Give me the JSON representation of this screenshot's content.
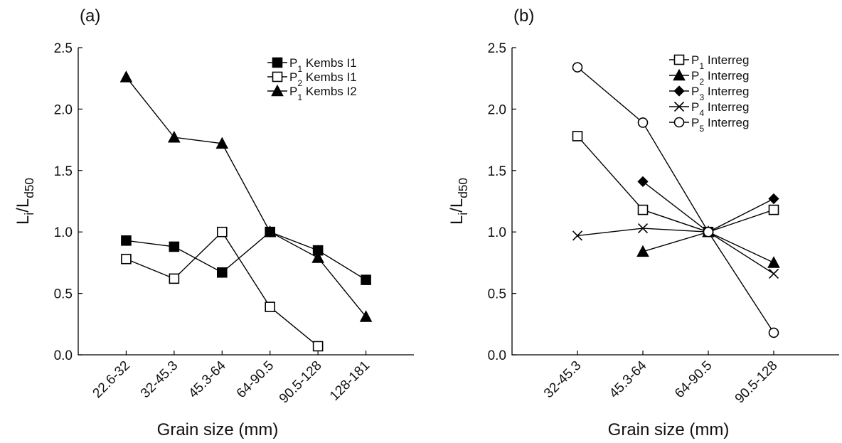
{
  "chart_data": [
    {
      "type": "line",
      "panel_label": "(a)",
      "xlabel": "Grain size (mm)",
      "ylabel": [
        "L",
        "i",
        "/L",
        "d50"
      ],
      "categories": [
        "22.6-32",
        "32-45.3",
        "45.3-64",
        "64-90.5",
        "90.5-128",
        "128-181"
      ],
      "ylim": [
        0,
        2.5
      ],
      "yticks": [
        {
          "value": 0,
          "label": "0.0"
        },
        {
          "value": 0.5,
          "label": "0.5"
        },
        {
          "value": 1,
          "label": "1.0"
        },
        {
          "value": 1.5,
          "label": "1.5"
        },
        {
          "value": 2,
          "label": "2.0"
        },
        {
          "value": 2.5,
          "label": "2.5"
        }
      ],
      "series": [
        {
          "name": [
            "P",
            "1",
            " Kembs I1"
          ],
          "color": "#000000",
          "marker": "square-filled",
          "values": [
            0.93,
            0.88,
            0.67,
            1.0,
            0.85,
            0.61
          ]
        },
        {
          "name": [
            "P",
            "2",
            " Kembs I1"
          ],
          "color": "#000000",
          "marker": "square-open",
          "values": [
            0.78,
            0.62,
            1.0,
            0.39,
            0.07,
            null
          ]
        },
        {
          "name": [
            "P",
            "1",
            " Kembs I2"
          ],
          "color": "#000000",
          "marker": "triangle",
          "values": [
            2.26,
            1.77,
            1.72,
            1.0,
            0.79,
            0.31
          ]
        }
      ]
    },
    {
      "type": "line",
      "panel_label": "(b)",
      "xlabel": "Grain size (mm)",
      "ylabel": [
        "L",
        "i",
        "/L",
        "d50"
      ],
      "categories": [
        "32-45.3",
        "45.3-64",
        "64-90.5",
        "90.5-128"
      ],
      "ylim": [
        0,
        2.5
      ],
      "yticks": [
        {
          "value": 0,
          "label": "0.0"
        },
        {
          "value": 0.5,
          "label": "0.5"
        },
        {
          "value": 1,
          "label": "1.0"
        },
        {
          "value": 1.5,
          "label": "1.5"
        },
        {
          "value": 2,
          "label": "2.0"
        },
        {
          "value": 2.5,
          "label": "2.5"
        }
      ],
      "series": [
        {
          "name": [
            "P",
            "1",
            " Interreg"
          ],
          "color": "#000000",
          "marker": "square-open",
          "values": [
            1.78,
            1.18,
            1.0,
            1.18
          ]
        },
        {
          "name": [
            "P",
            "2",
            " Interreg"
          ],
          "color": "#000000",
          "marker": "triangle",
          "values": [
            null,
            0.84,
            1.0,
            0.75
          ]
        },
        {
          "name": [
            "P",
            "3",
            " Interreg"
          ],
          "color": "#000000",
          "marker": "diamond",
          "values": [
            null,
            1.41,
            1.0,
            1.27
          ]
        },
        {
          "name": [
            "P",
            "4",
            " Interreg"
          ],
          "color": "#000000",
          "marker": "x",
          "values": [
            0.97,
            1.03,
            1.0,
            0.66
          ]
        },
        {
          "name": [
            "P",
            "5",
            " Interreg"
          ],
          "color": "#000000",
          "marker": "circle",
          "values": [
            2.34,
            1.89,
            1.0,
            0.18
          ]
        }
      ]
    }
  ]
}
